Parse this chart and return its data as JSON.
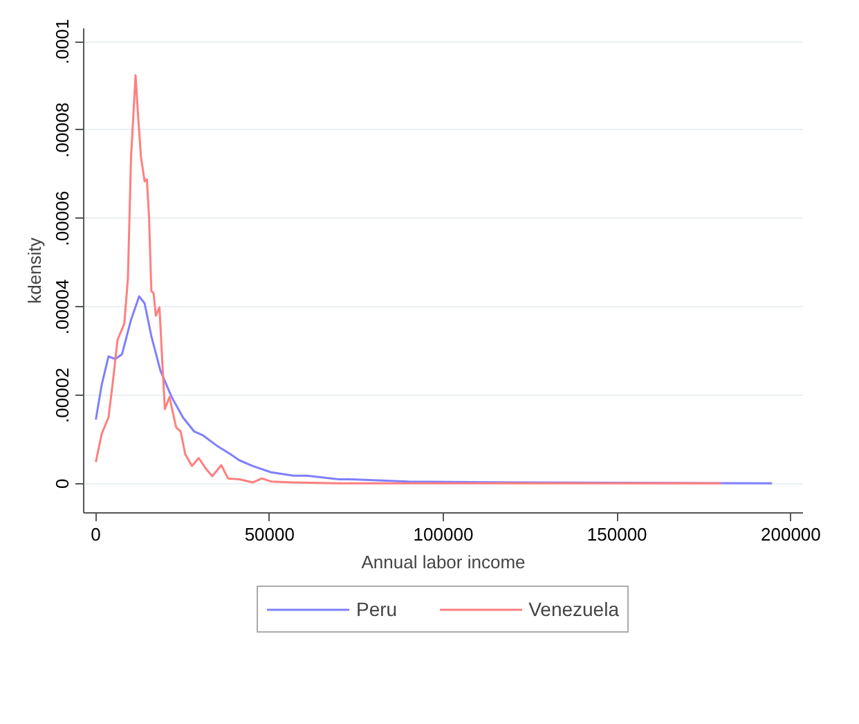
{
  "chart_data": {
    "type": "line",
    "xlabel": "Annual labor income",
    "ylabel": "kdensity",
    "xlim": [
      -3500,
      203500
    ],
    "ylim": [
      -6.6e-06,
      0.000103
    ],
    "xticks": [
      0,
      50000,
      100000,
      150000,
      200000
    ],
    "yticks": [
      0,
      {
        "value": 2e-05,
        "label": ".00002"
      },
      {
        "value": 4e-05,
        "label": ".00004"
      },
      {
        "value": 6e-05,
        "label": ".00006"
      },
      {
        "value": 8e-05,
        "label": ".00008"
      },
      {
        "value": 0.0001,
        "label": ".0001"
      }
    ],
    "grid": "y",
    "legend": "bottom",
    "line_style": "solid",
    "series": [
      {
        "name": "Peru",
        "color": "#7f7fff",
        "x": [
          0,
          1690,
          3640,
          5580,
          7530,
          10130,
          12470,
          14030,
          15970,
          18570,
          21820,
          25060,
          28310,
          30900,
          34810,
          38700,
          41300,
          45200,
          50390,
          56880,
          60780,
          69870,
          73000,
          90000,
          120000,
          150000,
          194600
        ],
        "values": [
          1.45e-05,
          2.24e-05,
          2.88e-05,
          2.82e-05,
          2.93e-05,
          3.71e-05,
          4.24e-05,
          4.08e-05,
          3.34e-05,
          2.56e-05,
          1.96e-05,
          1.5e-05,
          1.18e-05,
          1.09e-05,
          8.6e-06,
          6.7e-06,
          5.3e-06,
          4e-06,
          2.6e-06,
          1.8e-06,
          1.8e-06,
          1e-06,
          1e-06,
          5e-07,
          3e-07,
          2e-07,
          1e-07
        ]
      },
      {
        "name": "Venezuela",
        "color": "#ff7f7f",
        "x": [
          0,
          1690,
          3640,
          4940,
          6230,
          8180,
          9220,
          10130,
          11430,
          12080,
          12990,
          14030,
          14680,
          15320,
          15970,
          16620,
          17270,
          18310,
          19220,
          19870,
          21170,
          23120,
          24420,
          25710,
          27660,
          29610,
          31560,
          33510,
          36100,
          38050,
          41300,
          45200,
          47790,
          50390,
          56880,
          69870,
          100000,
          140000,
          179900
        ],
        "values": [
          4.9e-06,
          1.13e-05,
          1.5e-05,
          2.33e-05,
          3.25e-05,
          3.62e-05,
          4.63e-05,
          7.39e-05,
          9.24e-05,
          8.41e-05,
          7.39e-05,
          6.84e-05,
          6.89e-05,
          6.01e-05,
          4.36e-05,
          4.31e-05,
          3.8e-05,
          3.99e-05,
          2.61e-05,
          1.69e-05,
          1.96e-05,
          1.27e-05,
          1.18e-05,
          6.7e-06,
          4e-06,
          5.8e-06,
          3.5e-06,
          1.7e-06,
          4.2e-06,
          1.2e-06,
          1e-06,
          3e-07,
          1.2e-06,
          5e-07,
          3e-07,
          1e-07,
          1e-07,
          1e-07,
          1e-07
        ]
      }
    ]
  }
}
